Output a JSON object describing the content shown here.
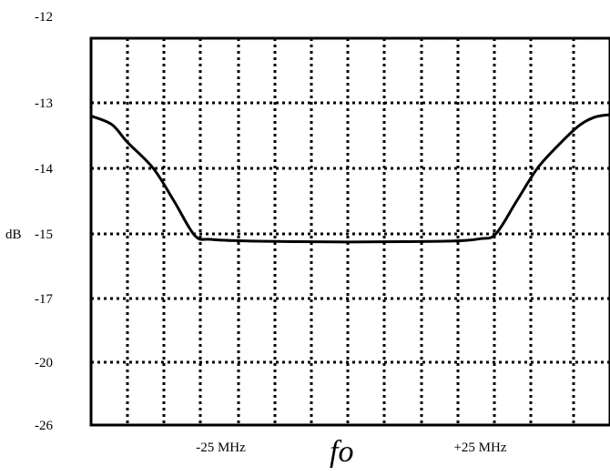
{
  "chart_data": {
    "type": "line",
    "title": "",
    "xlabel": "",
    "ylabel": "dB",
    "center_label": "fo",
    "x_tick_labels": [
      {
        "label": "-25 MHz",
        "x": -25
      },
      {
        "label": "+25 MHz",
        "x": 25
      }
    ],
    "y_tick_labels": [
      "-12",
      "-13",
      "-14",
      "-15",
      "-17",
      "-20",
      "-26"
    ],
    "xlim": [
      -50,
      50
    ],
    "ylim": [
      -26,
      -12
    ],
    "grid": true,
    "grid_style": "dotted",
    "series": [
      {
        "name": "",
        "color": "#000000",
        "points": [
          {
            "x": -50,
            "y": -13.2
          },
          {
            "x": -46,
            "y": -13.33
          },
          {
            "x": -43,
            "y": -13.6
          },
          {
            "x": -38,
            "y": -14.0
          },
          {
            "x": -34,
            "y": -14.5
          },
          {
            "x": -30,
            "y": -15.05
          },
          {
            "x": -27,
            "y": -15.17
          },
          {
            "x": -20,
            "y": -15.22
          },
          {
            "x": -10,
            "y": -15.24
          },
          {
            "x": 0,
            "y": -15.25
          },
          {
            "x": 10,
            "y": -15.24
          },
          {
            "x": 20,
            "y": -15.22
          },
          {
            "x": 25,
            "y": -15.15
          },
          {
            "x": 28,
            "y": -15.0
          },
          {
            "x": 32,
            "y": -14.5
          },
          {
            "x": 36,
            "y": -14.0
          },
          {
            "x": 40,
            "y": -13.65
          },
          {
            "x": 44,
            "y": -13.35
          },
          {
            "x": 47,
            "y": -13.22
          },
          {
            "x": 50,
            "y": -13.18
          }
        ]
      }
    ]
  }
}
